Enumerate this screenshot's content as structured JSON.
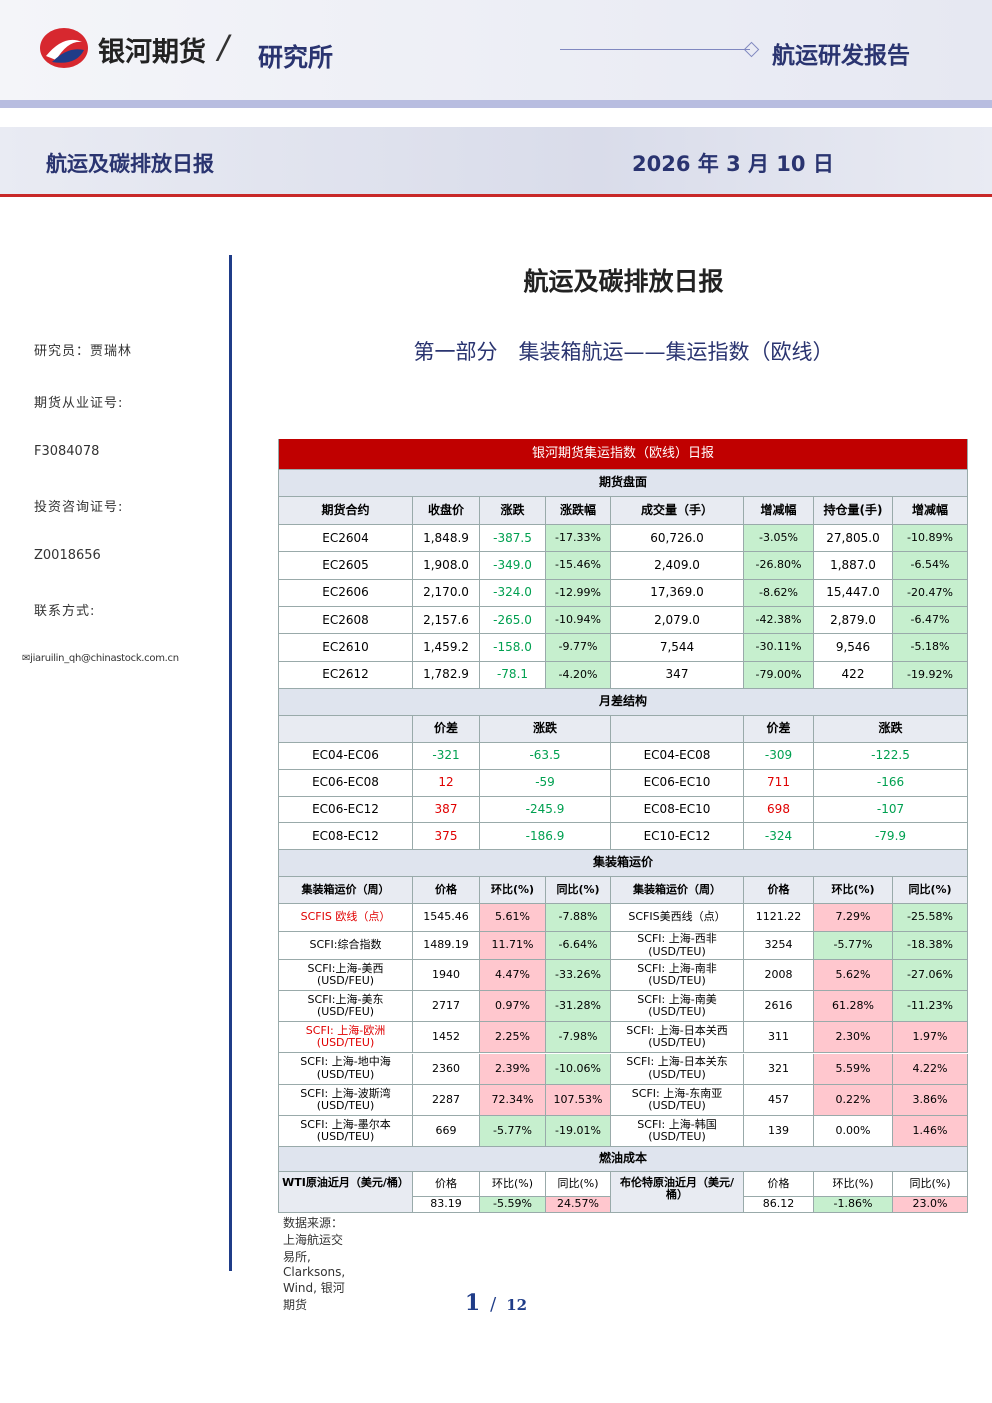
{
  "header": {
    "brand": "银河期货",
    "dept": "研究所",
    "report_type": "航运研发报告",
    "title": "航运及碳排放日报",
    "date": "2026 年 3 月 10 日"
  },
  "sidebar": {
    "researcher": "研究员：贾瑞林",
    "license_label": "期货从业证号:",
    "license": "F3084078",
    "consult_label": "投资咨询证号:",
    "consult": "Z0018656",
    "contact_label": "联系方式:",
    "email": "jiaruilin_qh@chinastock.com.cn"
  },
  "main": {
    "title": "航运及碳排放日报",
    "section": "第一部分　集装箱航运——集运指数（欧线）"
  },
  "table": {
    "title": "银河期货集运指数（欧线）日报",
    "sections": [
      {
        "title": "期货盘面",
        "header": [
          "期货合约",
          "收盘价",
          "涨跌",
          "涨跌幅",
          "成交量（手）",
          "增减幅",
          "持仓量(手)",
          "增减幅"
        ],
        "rows": [
          [
            "EC2604",
            "1,848.9",
            "-387.5",
            "-17.33%",
            "60,726.0",
            "-3.05%",
            "27,805.0",
            "-10.89%"
          ],
          [
            "EC2605",
            "1,908.0",
            "-349.0",
            "-15.46%",
            "2,409.0",
            "-26.80%",
            "1,887.0",
            "-6.54%"
          ],
          [
            "EC2606",
            "2,170.0",
            "-324.0",
            "-12.99%",
            "17,369.0",
            "-8.62%",
            "15,447.0",
            "-20.47%"
          ],
          [
            "EC2608",
            "2,157.6",
            "-265.0",
            "-10.94%",
            "2,079.0",
            "-42.38%",
            "2,879.0",
            "-6.47%"
          ],
          [
            "EC2610",
            "1,459.2",
            "-158.0",
            "-9.77%",
            "7,544",
            "-30.11%",
            "9,546",
            "-5.18%"
          ],
          [
            "EC2612",
            "1,782.9",
            "-78.1",
            "-4.20%",
            "347",
            "-79.00%",
            "422",
            "-19.92%"
          ]
        ]
      },
      {
        "title": "月差结构",
        "header": [
          "价差",
          "涨跌",
          "价差",
          "涨跌"
        ],
        "rows": [
          [
            "EC04-EC06",
            "-321",
            "-63.5",
            "EC04-EC08",
            "-309",
            "-122.5"
          ],
          [
            "EC06-EC08",
            "12",
            "-59",
            "EC06-EC10",
            "711",
            "-166"
          ],
          [
            "EC06-EC12",
            "387",
            "-245.9",
            "EC08-EC10",
            "698",
            "-107"
          ],
          [
            "EC08-EC12",
            "375",
            "-186.9",
            "EC10-EC12",
            "-324",
            "-79.9"
          ]
        ]
      },
      {
        "title": "集装箱运价",
        "header": [
          "集装箱运价（周）",
          "价格",
          "环比(%)",
          "同比(%)",
          "集装箱运价（周）",
          "价格",
          "环比(%)",
          "同比(%)"
        ],
        "rows": [
          [
            "SCFIS 欧线（点）",
            "1545.46",
            "5.61%",
            "-7.88%",
            "SCFIS美西线（点）",
            "1121.22",
            "7.29%",
            "-25.58%"
          ],
          [
            "SCFI:综合指数",
            "1489.19",
            "11.71%",
            "-6.64%",
            "SCFI: 上海-西非(USD/TEU)",
            "3254",
            "-5.77%",
            "-18.38%"
          ],
          [
            "SCFI:上海-美西(USD/FEU)",
            "1940",
            "4.47%",
            "-33.26%",
            "SCFI: 上海-南非(USD/TEU)",
            "2008",
            "5.62%",
            "-27.06%"
          ],
          [
            "SCFI:上海-美东(USD/FEU)",
            "2717",
            "0.97%",
            "-31.28%",
            "SCFI: 上海-南美(USD/TEU)",
            "2616",
            "61.28%",
            "-11.23%"
          ],
          [
            "SCFI: 上海-欧洲(USD/TEU)",
            "1452",
            "2.25%",
            "-7.98%",
            "SCFI: 上海-日本关西(USD/TEU)",
            "311",
            "2.30%",
            "1.97%"
          ],
          [
            "SCFI: 上海-地中海(USD/TEU)",
            "2360",
            "2.39%",
            "-10.06%",
            "SCFI: 上海-日本关东(USD/TEU)",
            "321",
            "5.59%",
            "4.22%"
          ],
          [
            "SCFI: 上海-波斯湾(USD/TEU)",
            "2287",
            "72.34%",
            "107.53%",
            "SCFI: 上海-东南亚(USD/TEU)",
            "457",
            "0.22%",
            "3.86%"
          ],
          [
            "SCFI: 上海-墨尔本(USD/TEU)",
            "669",
            "-5.77%",
            "-19.01%",
            "SCFI: 上海-韩国(USD/TEU)",
            "139",
            "0.00%",
            "1.46%"
          ]
        ]
      },
      {
        "title": "燃油成本",
        "header": [
          "WTI原油近月（美元/桶）",
          "价格",
          "环比(%)",
          "同比(%)",
          "布伦特原油近月（美元/桶）",
          "价格",
          "环比(%)",
          "同比(%)"
        ],
        "rows": [
          [
            "83.19",
            "-5.59%",
            "24.57%",
            "86.12",
            "-1.86%",
            "23.0%"
          ]
        ]
      }
    ],
    "source": "数据来源：上海航运交易所, Clarksons, Wind, 银河期货"
  },
  "page": {
    "current": "1",
    "total": "12"
  }
}
